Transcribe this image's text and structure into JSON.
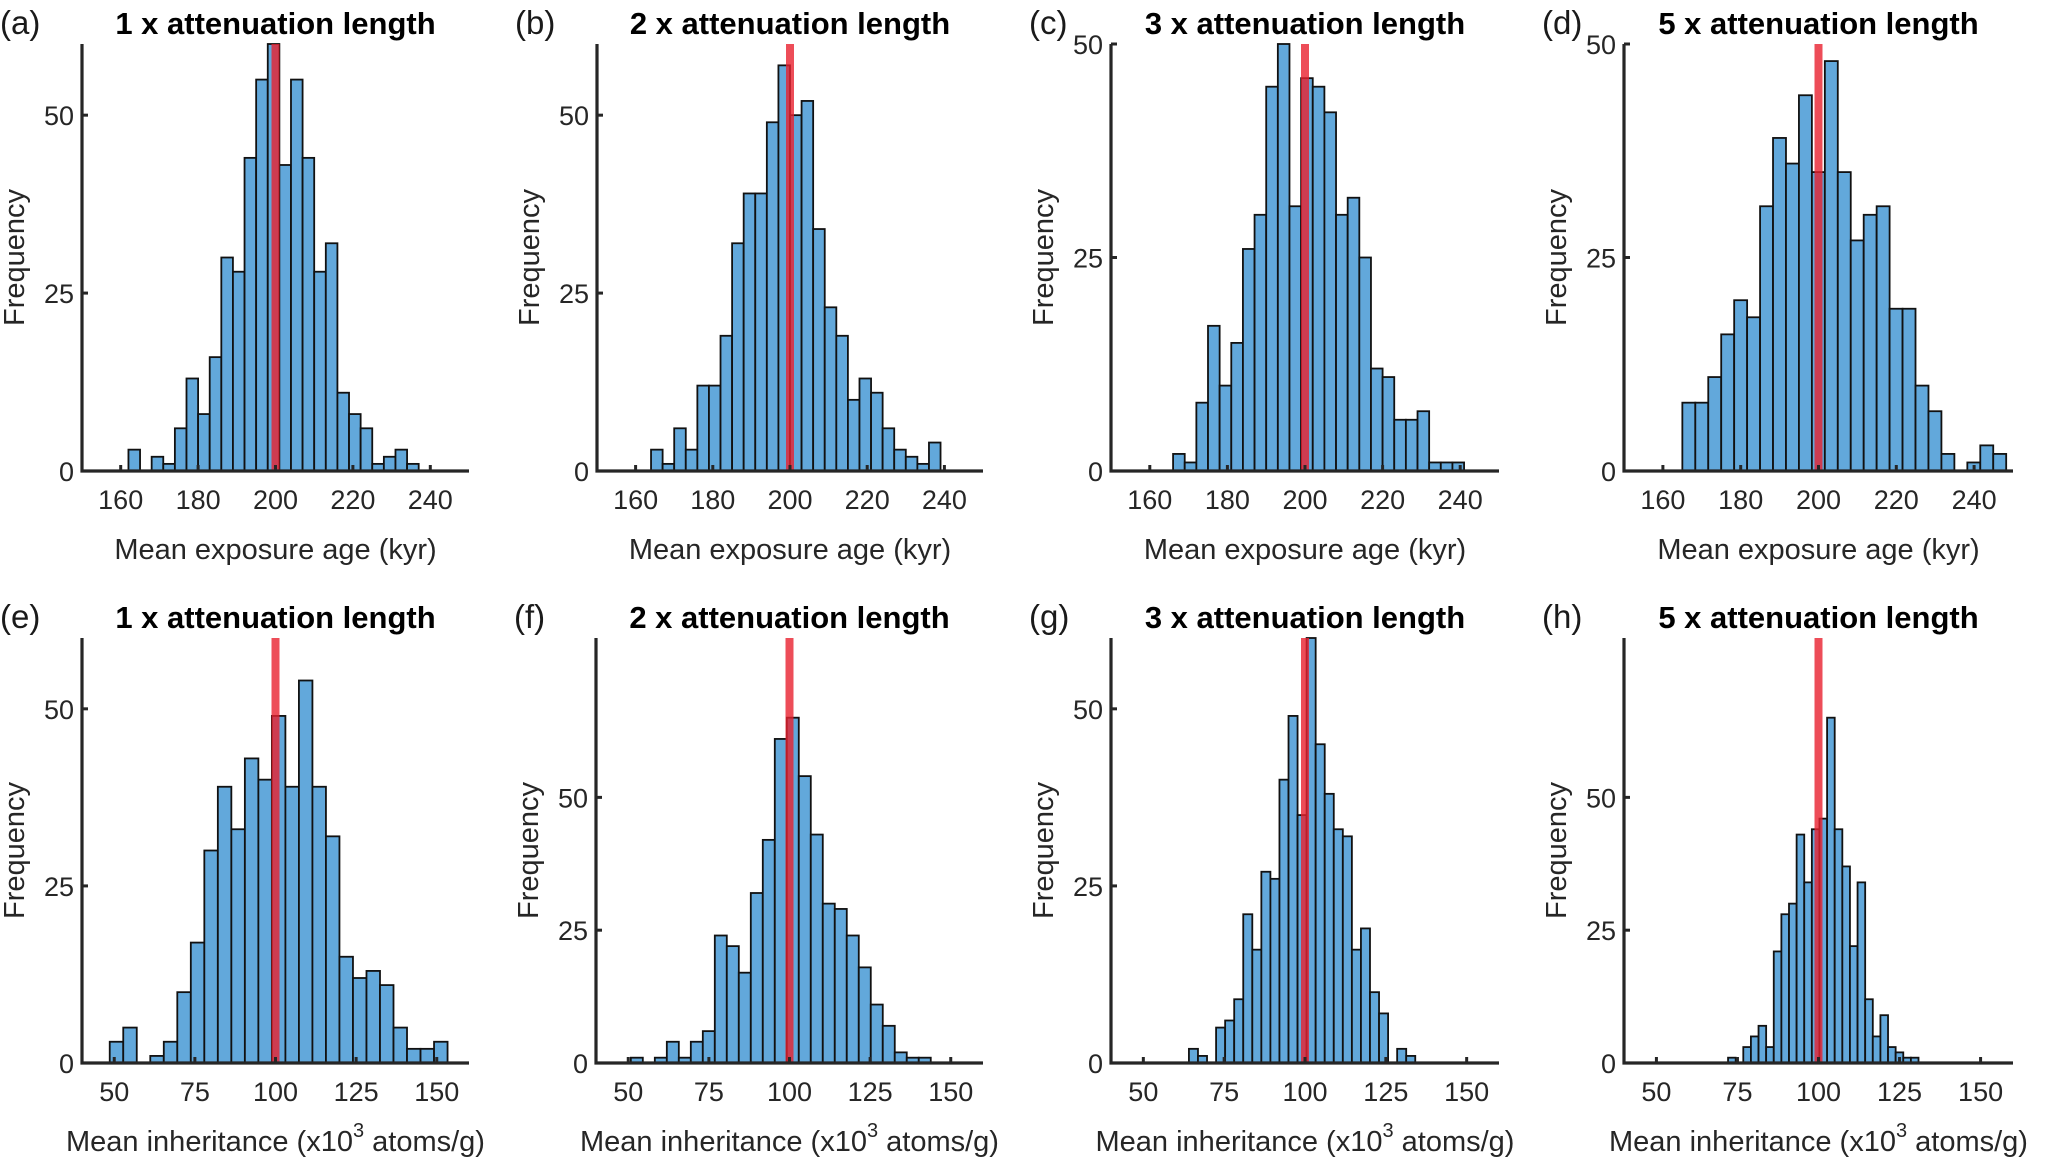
{
  "chart_data": [
    {
      "id": "a",
      "type": "bar",
      "panel_label": "(a)",
      "title": "1 x attenuation length",
      "xlabel": "Mean exposure age (kyr)",
      "ylabel": "Frequency",
      "xlim": [
        150,
        250
      ],
      "ylim": [
        0,
        60
      ],
      "xticks": [
        160,
        180,
        200,
        220,
        240
      ],
      "yticks": [
        0,
        25,
        50
      ],
      "bin_start": 162,
      "bin_width": 3,
      "values": [
        3,
        0,
        2,
        1,
        6,
        13,
        8,
        16,
        30,
        28,
        44,
        55,
        60,
        43,
        55,
        44,
        28,
        32,
        11,
        8,
        6,
        1,
        2,
        3,
        1
      ],
      "reference_line": 200,
      "grid": false
    },
    {
      "id": "b",
      "type": "bar",
      "panel_label": "(b)",
      "title": "2 x attenuation length",
      "xlabel": "Mean exposure age (kyr)",
      "ylabel": "Frequency",
      "xlim": [
        150,
        250
      ],
      "ylim": [
        0,
        60
      ],
      "xticks": [
        160,
        180,
        200,
        220,
        240
      ],
      "yticks": [
        0,
        25,
        50
      ],
      "bin_start": 164,
      "bin_width": 3,
      "values": [
        3,
        1,
        6,
        3,
        12,
        12,
        19,
        32,
        39,
        39,
        49,
        57,
        50,
        52,
        34,
        23,
        19,
        10,
        13,
        11,
        6,
        3,
        2,
        1,
        4
      ],
      "reference_line": 200,
      "grid": false
    },
    {
      "id": "c",
      "type": "bar",
      "panel_label": "(c)",
      "title": "3 x attenuation length",
      "xlabel": "Mean exposure age (kyr)",
      "ylabel": "Frequency",
      "xlim": [
        150,
        250
      ],
      "ylim": [
        0,
        50
      ],
      "xticks": [
        160,
        180,
        200,
        220,
        240
      ],
      "yticks": [
        0,
        25,
        50
      ],
      "bin_start": 166,
      "bin_width": 3,
      "values": [
        2,
        1,
        8,
        17,
        10,
        15,
        26,
        30,
        45,
        50,
        31,
        46,
        45,
        42,
        30,
        32,
        25,
        12,
        11,
        6,
        6,
        7,
        1,
        1,
        1
      ],
      "reference_line": 200,
      "grid": false
    },
    {
      "id": "d",
      "type": "bar",
      "panel_label": "(d)",
      "title": "5 x attenuation length",
      "xlabel": "Mean exposure age (kyr)",
      "ylabel": "Frequency",
      "xlim": [
        150,
        250
      ],
      "ylim": [
        0,
        50
      ],
      "xticks": [
        160,
        180,
        200,
        220,
        240
      ],
      "yticks": [
        0,
        25,
        50
      ],
      "bin_start": 165,
      "bin_width": 3.33,
      "values": [
        8,
        8,
        11,
        16,
        20,
        18,
        31,
        39,
        36,
        44,
        35,
        48,
        35,
        27,
        30,
        31,
        19,
        19,
        10,
        7,
        2,
        0,
        1,
        3,
        2
      ],
      "reference_line": 200,
      "grid": false
    },
    {
      "id": "e",
      "type": "bar",
      "panel_label": "(e)",
      "title": "1 x attenuation length",
      "xlabel": "Mean inheritance (x10",
      "xlabel_sup": "3",
      "xlabel_tail": " atoms/g)",
      "ylabel": "Frequency",
      "xlim": [
        40,
        160
      ],
      "ylim": [
        0,
        60
      ],
      "xticks": [
        50,
        75,
        100,
        125,
        150
      ],
      "yticks": [
        0,
        25,
        50
      ],
      "bin_start": 48.6,
      "bin_width": 4.19,
      "values": [
        3,
        5,
        0,
        1,
        3,
        10,
        17,
        30,
        39,
        33,
        43,
        40,
        49,
        39,
        54,
        39,
        32,
        15,
        12,
        13,
        11,
        5,
        2,
        2,
        3
      ],
      "reference_line": 100,
      "grid": false
    },
    {
      "id": "f",
      "type": "bar",
      "panel_label": "(f)",
      "title": "2 x attenuation length",
      "xlabel": "Mean inheritance (x10",
      "xlabel_sup": "3",
      "xlabel_tail": " atoms/g)",
      "ylabel": "Frequency",
      "xlim": [
        40,
        160
      ],
      "ylim": [
        0,
        80
      ],
      "xticks": [
        50,
        75,
        100,
        125,
        150
      ],
      "yticks": [
        0,
        25,
        50
      ],
      "bin_start": 50.8,
      "bin_width": 3.72,
      "values": [
        1,
        0,
        1,
        4,
        1,
        4,
        6,
        24,
        22,
        17,
        32,
        42,
        61,
        65,
        54,
        43,
        30,
        29,
        24,
        18,
        11,
        7,
        2,
        1,
        1
      ],
      "reference_line": 100,
      "grid": false
    },
    {
      "id": "g",
      "type": "bar",
      "panel_label": "(g)",
      "title": "3 x attenuation length",
      "xlabel": "Mean inheritance (x10",
      "xlabel_sup": "3",
      "xlabel_tail": " atoms/g)",
      "ylabel": "Frequency",
      "xlim": [
        40,
        160
      ],
      "ylim": [
        0,
        60
      ],
      "xticks": [
        50,
        75,
        100,
        125,
        150
      ],
      "yticks": [
        0,
        25,
        50
      ],
      "bin_start": 64.1,
      "bin_width": 2.8,
      "values": [
        2,
        1,
        0,
        5,
        6,
        9,
        21,
        16,
        27,
        26,
        40,
        49,
        35,
        60,
        45,
        38,
        33,
        32,
        16,
        19,
        10,
        7,
        0,
        2,
        1
      ],
      "reference_line": 100,
      "grid": false
    },
    {
      "id": "h",
      "type": "bar",
      "panel_label": "(h)",
      "title": "5 x attenuation length",
      "xlabel": "Mean inheritance (x10",
      "xlabel_sup": "3",
      "xlabel_tail": " atoms/g)",
      "ylabel": "Frequency",
      "xlim": [
        40,
        160
      ],
      "ylim": [
        0,
        80
      ],
      "xticks": [
        50,
        75,
        100,
        125,
        150
      ],
      "yticks": [
        0,
        25,
        50
      ],
      "bin_start": 72.1,
      "bin_width": 2.35,
      "values": [
        1,
        0,
        3,
        5,
        7,
        3,
        21,
        28,
        30,
        43,
        34,
        44,
        46,
        65,
        44,
        37,
        22,
        34,
        12,
        5,
        9,
        3,
        2,
        1,
        1
      ],
      "reference_line": 100,
      "grid": false
    }
  ],
  "colors": {
    "bar_fill": "#62a8db",
    "bar_edge": "#111111",
    "reference_line": "#e8202e"
  }
}
